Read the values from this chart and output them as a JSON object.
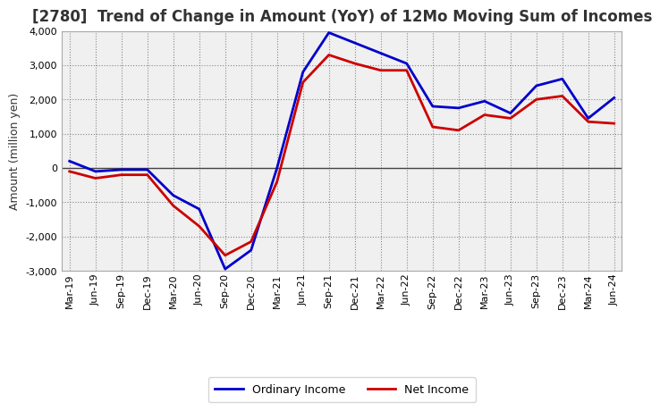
{
  "title": "[2780]  Trend of Change in Amount (YoY) of 12Mo Moving Sum of Incomes",
  "ylabel": "Amount (million yen)",
  "labels": [
    "Mar-19",
    "Jun-19",
    "Sep-19",
    "Dec-19",
    "Mar-20",
    "Jun-20",
    "Sep-20",
    "Dec-20",
    "Mar-21",
    "Jun-21",
    "Sep-21",
    "Dec-21",
    "Mar-22",
    "Jun-22",
    "Sep-22",
    "Dec-22",
    "Mar-23",
    "Jun-23",
    "Sep-23",
    "Dec-23",
    "Mar-24",
    "Jun-24"
  ],
  "ordinary_income": [
    200,
    -100,
    -50,
    -50,
    -800,
    -1200,
    -2950,
    -2400,
    0,
    2800,
    3950,
    3650,
    3350,
    3050,
    1800,
    1750,
    1950,
    1600,
    2400,
    2600,
    1450,
    2050
  ],
  "net_income": [
    -100,
    -300,
    -200,
    -200,
    -1100,
    -1700,
    -2550,
    -2150,
    -400,
    2500,
    3300,
    3050,
    2850,
    2850,
    1200,
    1100,
    1550,
    1450,
    2000,
    2100,
    1350,
    1300
  ],
  "ordinary_color": "#0000cc",
  "net_color": "#cc0000",
  "ylim": [
    -3000,
    4000
  ],
  "yticks": [
    -3000,
    -2000,
    -1000,
    0,
    1000,
    2000,
    3000,
    4000
  ],
  "bg_color": "#ffffff",
  "plot_bg_color": "#f0f0f0",
  "grid_color": "#888888",
  "zero_line_color": "#444444",
  "line_width": 2.0,
  "title_fontsize": 12,
  "axis_fontsize": 9,
  "tick_fontsize": 8,
  "legend_fontsize": 9,
  "title_color": "#333333"
}
